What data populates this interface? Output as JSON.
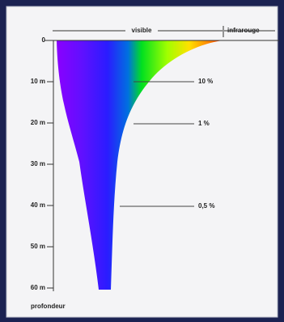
{
  "header": {
    "visible": "visible",
    "infrared": "infrarouge"
  },
  "axis": {
    "labels": [
      "0",
      "10 m",
      "20 m",
      "30 m",
      "40 m",
      "50 m",
      "60 m"
    ],
    "title": "profondeur"
  },
  "annotations": [
    "10 %",
    "1 %",
    "0,5 %"
  ]
}
